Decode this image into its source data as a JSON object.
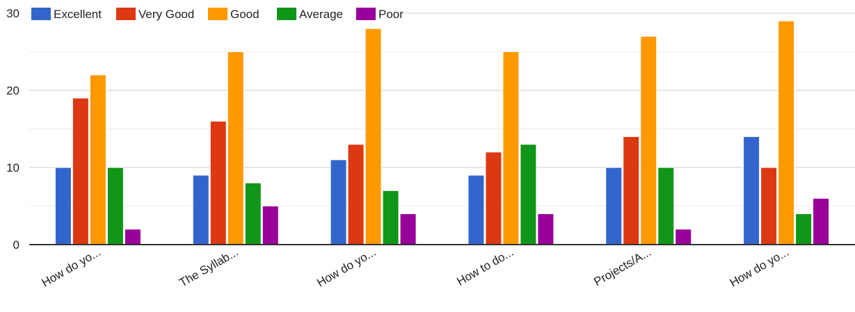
{
  "chart_data": {
    "type": "bar",
    "categories": [
      "How do yo...",
      "The Syllab...",
      "How do yo...",
      "How to do...",
      "Projects/A...",
      "How do yo..."
    ],
    "series": [
      {
        "name": "Excellent",
        "color": "#3366cc",
        "values": [
          10,
          9,
          11,
          9,
          10,
          14
        ]
      },
      {
        "name": "Very Good",
        "color": "#dc3912",
        "values": [
          19,
          16,
          13,
          12,
          14,
          10
        ]
      },
      {
        "name": "Good",
        "color": "#ff9900",
        "values": [
          22,
          25,
          28,
          25,
          27,
          29
        ]
      },
      {
        "name": "Average",
        "color": "#109618",
        "values": [
          10,
          8,
          7,
          13,
          10,
          4
        ]
      },
      {
        "name": "Poor",
        "color": "#990099",
        "values": [
          2,
          5,
          4,
          4,
          2,
          6
        ]
      }
    ],
    "ylim": [
      0,
      30
    ],
    "y_ticks": [
      0,
      10,
      20,
      30
    ],
    "minor_gridlines": true,
    "legend_position": "top-left",
    "title": "",
    "xlabel": "",
    "ylabel": ""
  }
}
